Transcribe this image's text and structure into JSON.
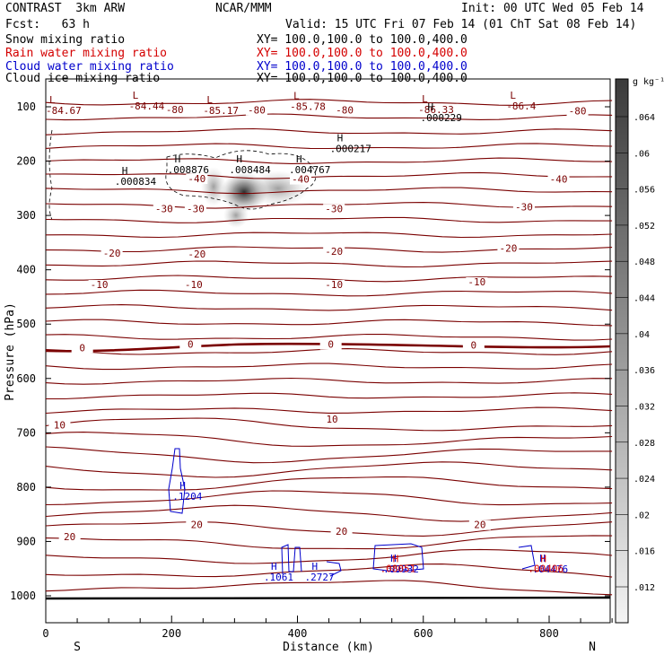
{
  "header": {
    "title_left": "CONTRAST  3km ARW",
    "center": "NCAR/MMM",
    "init": "Init: 00 UTC Wed 05 Feb 14",
    "fcst": "Fcst:   63 h",
    "valid": "Valid: 15 UTC Fri 07 Feb 14 (01 ChT Sat 08 Feb 14)"
  },
  "fields": [
    {
      "name": "Snow mixing ratio",
      "xy": "XY= 100.0,100.0 to 100.0,400.0",
      "color": "#000000"
    },
    {
      "name": "Rain water mixing ratio",
      "xy": "XY= 100.0,100.0 to 100.0,400.0",
      "color": "#d40000"
    },
    {
      "name": "Cloud water mixing ratio",
      "xy": "XY= 100.0,100.0 to 100.0,400.0",
      "color": "#0000cc"
    },
    {
      "name": "Cloud ice mixing ratio",
      "xy": "XY= 100.0,100.0 to 100.0,400.0",
      "color": "#000000"
    }
  ],
  "chart_data": {
    "type": "contour-cross-section",
    "xlabel": "Distance (km)",
    "ylabel": "Pressure (hPa)",
    "xlim": [
      0,
      900
    ],
    "ylim": [
      1040,
      65
    ],
    "x_ticks": [
      0,
      200,
      400,
      600,
      800
    ],
    "y_ticks": [
      100,
      200,
      300,
      400,
      500,
      600,
      700,
      800,
      900,
      1000
    ],
    "endpoints": {
      "left": "S",
      "right": "N"
    },
    "colorbar": {
      "unit": "g kg⁻¹",
      "ticks": [
        ".012",
        ".016",
        ".02",
        ".024",
        ".028",
        ".032",
        ".036",
        ".04",
        ".044",
        ".048",
        ".052",
        ".056",
        ".06",
        ".064"
      ]
    },
    "temperature_labels": [
      {
        "text": "-80",
        "x": 205,
        "p": 110
      },
      {
        "text": "-80",
        "x": 335,
        "p": 111
      },
      {
        "text": "-80",
        "x": 475,
        "p": 111
      },
      {
        "text": "-80",
        "x": 845,
        "p": 112
      },
      {
        "text": "-40",
        "x": 240,
        "p": 237
      },
      {
        "text": "-40",
        "x": 405,
        "p": 238
      },
      {
        "text": "-40",
        "x": 815,
        "p": 238
      },
      {
        "text": "-30",
        "x": 188,
        "p": 292
      },
      {
        "text": "-30",
        "x": 238,
        "p": 292
      },
      {
        "text": "-30",
        "x": 458,
        "p": 292
      },
      {
        "text": "-30",
        "x": 760,
        "p": 289
      },
      {
        "text": "-20",
        "x": 105,
        "p": 374
      },
      {
        "text": "-20",
        "x": 240,
        "p": 376
      },
      {
        "text": "-20",
        "x": 458,
        "p": 371
      },
      {
        "text": "-20",
        "x": 735,
        "p": 365
      },
      {
        "text": "-10",
        "x": 85,
        "p": 432
      },
      {
        "text": "-10",
        "x": 235,
        "p": 432
      },
      {
        "text": "-10",
        "x": 458,
        "p": 432
      },
      {
        "text": "-10",
        "x": 685,
        "p": 427
      },
      {
        "text": "0",
        "x": 58,
        "p": 548
      },
      {
        "text": "0",
        "x": 230,
        "p": 542
      },
      {
        "text": "0",
        "x": 453,
        "p": 542
      },
      {
        "text": "0",
        "x": 680,
        "p": 543
      },
      {
        "text": "10",
        "x": 22,
        "p": 690
      },
      {
        "text": "10",
        "x": 455,
        "p": 680
      },
      {
        "text": "20",
        "x": 38,
        "p": 896
      },
      {
        "text": "20",
        "x": 240,
        "p": 874
      },
      {
        "text": "20",
        "x": 470,
        "p": 886
      },
      {
        "text": "20",
        "x": 690,
        "p": 874
      }
    ],
    "lows": [
      {
        "value": "-84.67",
        "x": 0,
        "p": 103
      },
      {
        "value": "-84.44",
        "x": 132,
        "p": 95
      },
      {
        "value": "-85.17",
        "x": 250,
        "p": 103
      },
      {
        "value": "-85.78",
        "x": 388,
        "p": 96
      },
      {
        "value": "-86.33",
        "x": 592,
        "p": 102
      },
      {
        "value": "-86.4",
        "x": 732,
        "p": 95
      }
    ],
    "highs": [
      {
        "value": ".000229",
        "x": 604,
        "p": 118,
        "color": "#000000"
      },
      {
        "value": ".000217",
        "x": 460,
        "p": 175,
        "color": "#000000"
      },
      {
        "value": ".000834",
        "x": 118,
        "p": 235,
        "color": "#000000"
      },
      {
        "value": ".008876",
        "x": 202,
        "p": 214,
        "color": "#000000"
      },
      {
        "value": ".008484",
        "x": 300,
        "p": 214,
        "color": "#000000"
      },
      {
        "value": ".004767",
        "x": 395,
        "p": 214,
        "color": "#000000"
      },
      {
        "value": ".1204",
        "x": 210,
        "p": 815,
        "color": "#0000cc"
      },
      {
        "value": ".1061",
        "x": 355,
        "p": 964,
        "color": "#0000cc"
      },
      {
        "value": ".2727",
        "x": 420,
        "p": 964,
        "color": "#0000cc"
      },
      {
        "value": ".09932",
        "x": 545,
        "p": 949,
        "color": "#0000cc"
      },
      {
        "value": ".04476",
        "x": 782,
        "p": 949,
        "color": "#0000cc"
      }
    ],
    "high_labels_rain": [
      {
        "value": ".08051",
        "x": 537,
        "p": 951,
        "color": "#d40000"
      },
      {
        "value": ".00406",
        "x": 772,
        "p": 951,
        "color": "#d40000"
      }
    ]
  }
}
